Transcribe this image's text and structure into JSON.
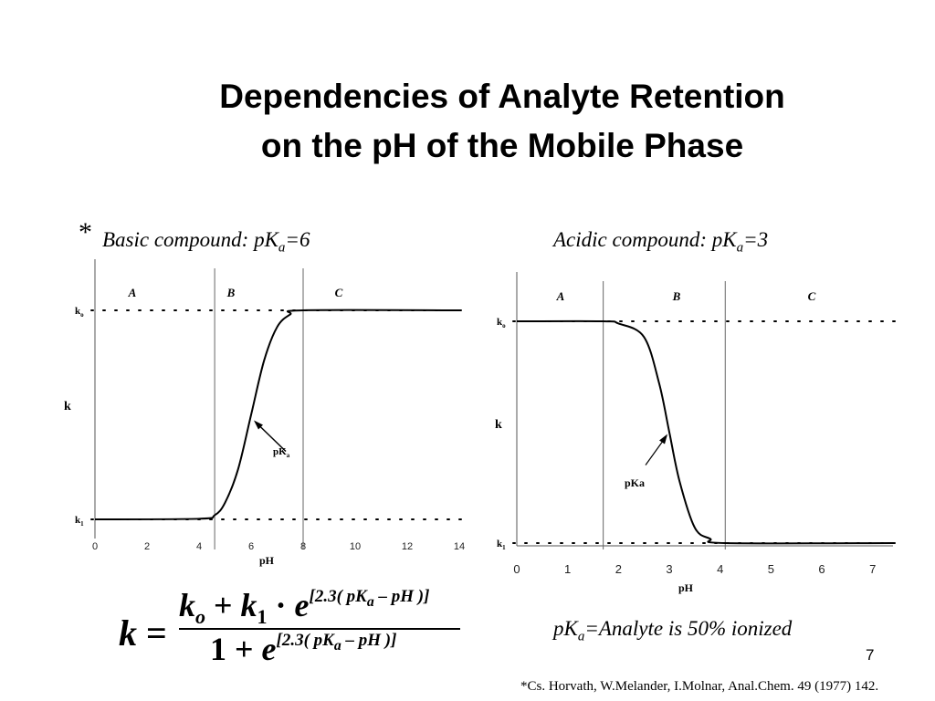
{
  "slide": {
    "title_line1": "Dependencies of Analyte Retention",
    "title_line2": "on the pH of the Mobile Phase",
    "star": "*",
    "basic_label": "Basic compound: pK",
    "basic_sub": "a",
    "basic_value": "=6",
    "acidic_label": "Acidic compound: pK",
    "acidic_sub": "a",
    "acidic_value": "=3",
    "note_label": "pK",
    "note_sub": "a",
    "note_text": "=Analyte is 50%  ionized",
    "page_number": "7",
    "citation": "*Cs. Horvath, W.Melander, I.Molnar, Anal.Chem. 49 (1977) 142."
  },
  "formula": {
    "lhs": "k",
    "eq": "=",
    "k0": "k",
    "k0_sub": "o",
    "plus": "+",
    "k1": "k",
    "k1_sub": "1",
    "dot": "·",
    "e": "e",
    "exponent_pre": "[2.3(",
    "exponent_pk": "pK",
    "exponent_pk_sub": "a",
    "exponent_post": "– pH )]",
    "one": "1",
    "denominator_plus": "+"
  },
  "chart_data": [
    {
      "type": "line",
      "title": "Basic compound: pKa=6",
      "xlabel": "pH",
      "ylabel": "k",
      "xlim": [
        0,
        14
      ],
      "x_ticks": [
        "0",
        "2",
        "4",
        "6",
        "8",
        "10",
        "12",
        "14"
      ],
      "y_ticks": [
        "k0",
        "k1"
      ],
      "y_tick_sub": [
        "o",
        "1"
      ],
      "regions": [
        "A",
        "B",
        "C"
      ],
      "region_boundaries": [
        4.6,
        8.0
      ],
      "pKa": 6,
      "annotation": "pKa",
      "annotation_main": "pK",
      "annotation_sub": "a",
      "series": [
        {
          "x": [
            0,
            4,
            4.6,
            5,
            5.5,
            6,
            6.5,
            7,
            7.5,
            8,
            14
          ],
          "values": [
            0.0,
            0.003,
            0.02,
            0.08,
            0.24,
            0.5,
            0.76,
            0.92,
            0.98,
            1.0,
            1.0
          ]
        }
      ]
    },
    {
      "type": "line",
      "title": "Acidic compound: pKa=3",
      "xlabel": "pH",
      "ylabel": "k",
      "xlim": [
        0,
        7.4
      ],
      "x_ticks": [
        "0",
        "1",
        "2",
        "3",
        "4",
        "5",
        "6",
        "7"
      ],
      "y_ticks": [
        "k0",
        "k1"
      ],
      "y_tick_sub": [
        "o",
        "1"
      ],
      "regions": [
        "A",
        "B",
        "C"
      ],
      "region_boundaries": [
        1.7,
        4.1
      ],
      "pKa": 3,
      "annotation": "pKa",
      "series": [
        {
          "x": [
            0,
            1.7,
            2,
            2.5,
            2.8,
            3,
            3.2,
            3.5,
            3.8,
            4.1,
            7.4
          ],
          "values": [
            1.0,
            1.0,
            0.99,
            0.93,
            0.72,
            0.5,
            0.28,
            0.07,
            0.02,
            0.0,
            0.0
          ]
        }
      ]
    }
  ]
}
